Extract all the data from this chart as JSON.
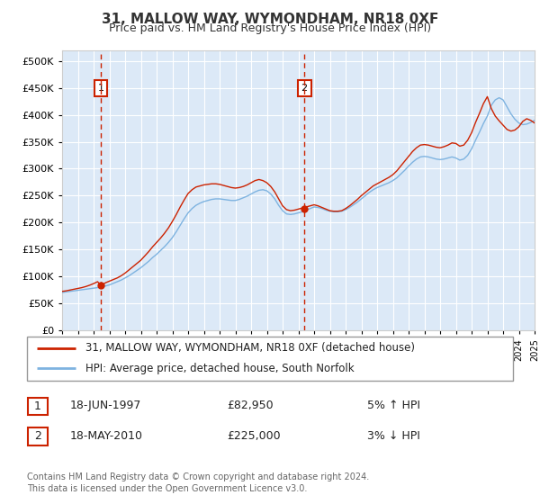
{
  "title": "31, MALLOW WAY, WYMONDHAM, NR18 0XF",
  "subtitle": "Price paid vs. HM Land Registry's House Price Index (HPI)",
  "plot_bg_color": "#dce9f7",
  "hpi_color": "#7eb3e0",
  "price_color": "#cc2200",
  "vline_color": "#cc2200",
  "ylim": [
    0,
    520000
  ],
  "yticks": [
    0,
    50000,
    100000,
    150000,
    200000,
    250000,
    300000,
    350000,
    400000,
    450000,
    500000
  ],
  "sale1_year": 1997.46,
  "sale1_price": 82950,
  "sale2_year": 2010.38,
  "sale2_price": 225000,
  "legend_line1": "31, MALLOW WAY, WYMONDHAM, NR18 0XF (detached house)",
  "legend_line2": "HPI: Average price, detached house, South Norfolk",
  "footer": "Contains HM Land Registry data © Crown copyright and database right 2024.\nThis data is licensed under the Open Government Licence v3.0.",
  "xmin": 1995,
  "xmax": 2025,
  "hpi_years": [
    1995.0,
    1995.25,
    1995.5,
    1995.75,
    1996.0,
    1996.25,
    1996.5,
    1996.75,
    1997.0,
    1997.25,
    1997.5,
    1997.75,
    1998.0,
    1998.25,
    1998.5,
    1998.75,
    1999.0,
    1999.25,
    1999.5,
    1999.75,
    2000.0,
    2000.25,
    2000.5,
    2000.75,
    2001.0,
    2001.25,
    2001.5,
    2001.75,
    2002.0,
    2002.25,
    2002.5,
    2002.75,
    2003.0,
    2003.25,
    2003.5,
    2003.75,
    2004.0,
    2004.25,
    2004.5,
    2004.75,
    2005.0,
    2005.25,
    2005.5,
    2005.75,
    2006.0,
    2006.25,
    2006.5,
    2006.75,
    2007.0,
    2007.25,
    2007.5,
    2007.75,
    2008.0,
    2008.25,
    2008.5,
    2008.75,
    2009.0,
    2009.25,
    2009.5,
    2009.75,
    2010.0,
    2010.25,
    2010.5,
    2010.75,
    2011.0,
    2011.25,
    2011.5,
    2011.75,
    2012.0,
    2012.25,
    2012.5,
    2012.75,
    2013.0,
    2013.25,
    2013.5,
    2013.75,
    2014.0,
    2014.25,
    2014.5,
    2014.75,
    2015.0,
    2015.25,
    2015.5,
    2015.75,
    2016.0,
    2016.25,
    2016.5,
    2016.75,
    2017.0,
    2017.25,
    2017.5,
    2017.75,
    2018.0,
    2018.25,
    2018.5,
    2018.75,
    2019.0,
    2019.25,
    2019.5,
    2019.75,
    2020.0,
    2020.25,
    2020.5,
    2020.75,
    2021.0,
    2021.25,
    2021.5,
    2021.75,
    2022.0,
    2022.25,
    2022.5,
    2022.75,
    2023.0,
    2023.25,
    2023.5,
    2023.75,
    2024.0,
    2024.25,
    2024.5,
    2024.75,
    2025.0
  ],
  "hpi_values": [
    70000,
    71000,
    72000,
    73000,
    74000,
    75000,
    76000,
    77000,
    78000,
    79000,
    80500,
    82000,
    84000,
    87000,
    90000,
    93000,
    97000,
    101000,
    106000,
    111000,
    116000,
    122000,
    128000,
    135000,
    141000,
    148000,
    155000,
    163000,
    172000,
    183000,
    195000,
    207000,
    218000,
    226000,
    232000,
    236000,
    239000,
    241000,
    243000,
    244000,
    244000,
    243000,
    242000,
    241000,
    241000,
    243000,
    246000,
    249000,
    253000,
    257000,
    260000,
    261000,
    259000,
    253000,
    244000,
    232000,
    222000,
    216000,
    215000,
    216000,
    218000,
    220000,
    223000,
    226000,
    229000,
    228000,
    226000,
    223000,
    221000,
    220000,
    220000,
    221000,
    224000,
    228000,
    233000,
    238000,
    244000,
    250000,
    256000,
    261000,
    265000,
    268000,
    271000,
    274000,
    278000,
    283000,
    290000,
    297000,
    305000,
    312000,
    318000,
    322000,
    323000,
    322000,
    320000,
    318000,
    317000,
    318000,
    320000,
    322000,
    320000,
    316000,
    318000,
    325000,
    337000,
    353000,
    368000,
    384000,
    398000,
    418000,
    428000,
    432000,
    428000,
    415000,
    402000,
    392000,
    385000,
    382000,
    383000,
    386000,
    390000
  ],
  "price_values": [
    72000,
    73000,
    74500,
    76000,
    77500,
    79000,
    81000,
    83500,
    86500,
    90000,
    83000,
    88000,
    91000,
    94000,
    97000,
    101000,
    106000,
    112000,
    118000,
    124000,
    130000,
    138000,
    146000,
    155000,
    163000,
    171000,
    180000,
    190000,
    202000,
    215000,
    229000,
    242000,
    254000,
    261000,
    266000,
    268000,
    270000,
    271000,
    272000,
    272000,
    271000,
    269000,
    267000,
    265000,
    264000,
    265000,
    267000,
    270000,
    274000,
    278000,
    280000,
    278000,
    274000,
    267000,
    257000,
    244000,
    231000,
    224000,
    222000,
    223000,
    225000,
    227000,
    229000,
    231000,
    233000,
    231000,
    228000,
    225000,
    222000,
    221000,
    221000,
    222000,
    226000,
    231000,
    237000,
    243000,
    250000,
    256000,
    262000,
    268000,
    272000,
    276000,
    280000,
    284000,
    289000,
    296000,
    305000,
    314000,
    323000,
    332000,
    339000,
    344000,
    345000,
    344000,
    342000,
    340000,
    339000,
    341000,
    344000,
    348000,
    347000,
    342000,
    344000,
    353000,
    367000,
    386000,
    403000,
    421000,
    434000,
    412000,
    398000,
    389000,
    381000,
    373000,
    370000,
    372000,
    378000,
    388000,
    393000,
    390000,
    385000
  ]
}
